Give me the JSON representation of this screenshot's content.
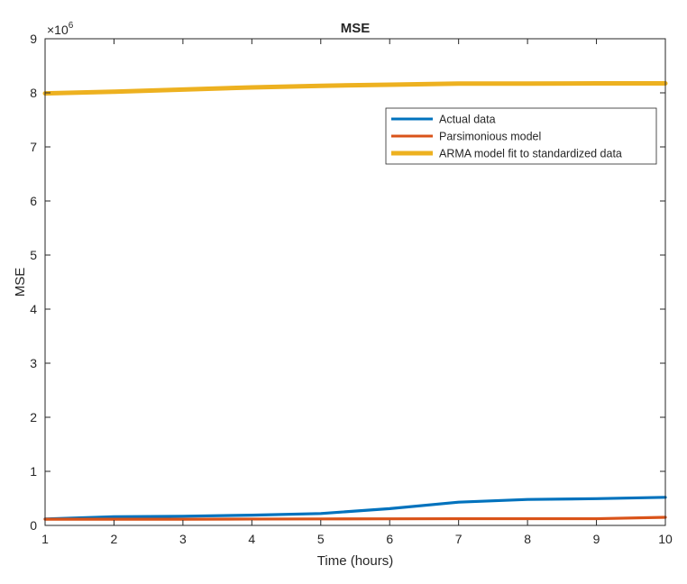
{
  "chart_data": {
    "type": "line",
    "title": "MSE",
    "xlabel": "Time (hours)",
    "ylabel": "MSE",
    "y_multiplier": "×10^6",
    "xlim": [
      1,
      10
    ],
    "ylim": [
      0,
      9000000
    ],
    "x_ticks": [
      1,
      2,
      3,
      4,
      5,
      6,
      7,
      8,
      9,
      10
    ],
    "y_ticks": [
      0,
      1,
      2,
      3,
      4,
      5,
      6,
      7,
      8,
      9
    ],
    "grid": false,
    "legend_position": "top-right",
    "x": [
      1,
      2,
      3,
      4,
      5,
      6,
      7,
      8,
      9,
      10
    ],
    "series": [
      {
        "name": "Actual data",
        "color": "#0072BD",
        "values": [
          120000,
          160000,
          170000,
          190000,
          220000,
          310000,
          430000,
          480000,
          495000,
          520000
        ]
      },
      {
        "name": "Parsimonious model",
        "color": "#D95319",
        "values": [
          115000,
          115000,
          115000,
          118000,
          120000,
          122000,
          124000,
          124000,
          124000,
          150000
        ]
      },
      {
        "name": "ARMA model fit to standardized data",
        "color": "#EDB120",
        "values": [
          7990000,
          8020000,
          8060000,
          8100000,
          8130000,
          8150000,
          8170000,
          8170000,
          8175000,
          8175000
        ]
      }
    ]
  }
}
